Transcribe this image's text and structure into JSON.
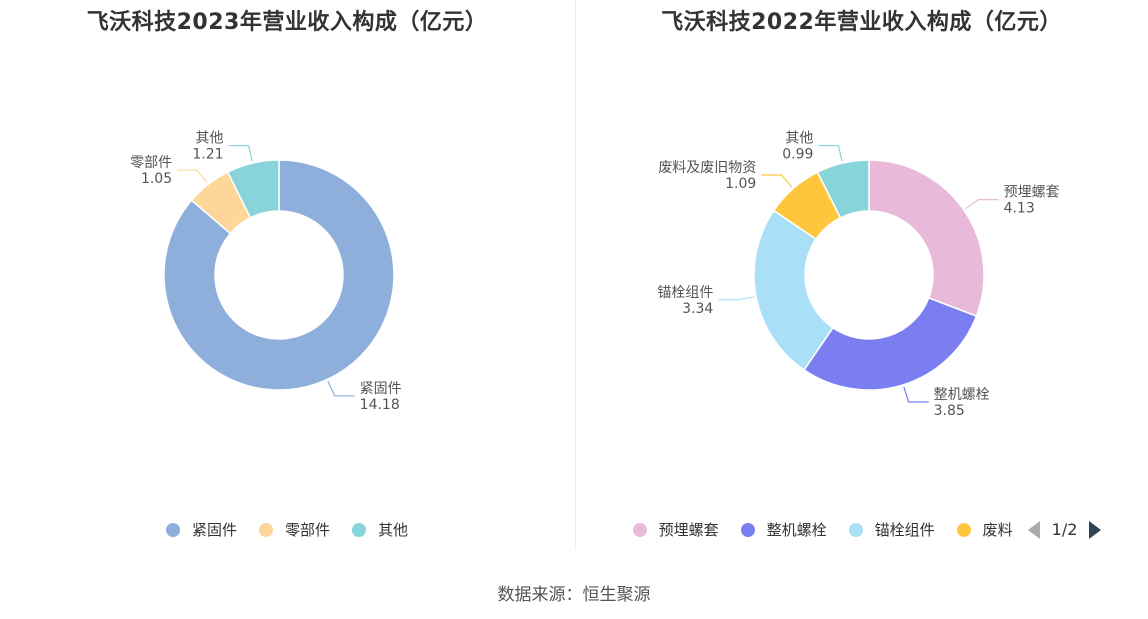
{
  "charts": [
    {
      "title": "飞沃科技2023年营业收入构成（亿元）",
      "legend_items": [
        "紧固件",
        "零部件",
        "其他"
      ]
    },
    {
      "title": "飞沃科技2022年营业收入构成（亿元）",
      "legend_items": [
        "预埋螺套",
        "整机螺栓",
        "锚栓组件",
        "废料"
      ],
      "legend_pager": "1/2"
    }
  ],
  "source": "数据来源：恒生聚源",
  "colors": {
    "紧固件": "#8eaedb",
    "零部件": "#fdd79a",
    "其他": "#87d4da",
    "预埋螺套": "#e8b9d9",
    "整机螺栓": "#7b7ef0",
    "锚栓组件": "#aadff8",
    "废料及废旧物资": "#ffc53d",
    "废料": "#ffc53d"
  },
  "chart_data": [
    {
      "type": "pie",
      "title": "飞沃科技2023年营业收入构成（亿元）",
      "donut": true,
      "slices": [
        {
          "label": "紧固件",
          "value": 14.18
        },
        {
          "label": "零部件",
          "value": 1.05
        },
        {
          "label": "其他",
          "value": 1.21
        }
      ],
      "legend": [
        "紧固件",
        "零部件",
        "其他"
      ],
      "legend_position": "bottom"
    },
    {
      "type": "pie",
      "title": "飞沃科技2022年营业收入构成（亿元）",
      "donut": true,
      "slices": [
        {
          "label": "预埋螺套",
          "value": 4.13
        },
        {
          "label": "整机螺栓",
          "value": 3.85
        },
        {
          "label": "锚栓组件",
          "value": 3.34
        },
        {
          "label": "废料及废旧物资",
          "value": 1.09
        },
        {
          "label": "其他",
          "value": 0.99
        }
      ],
      "legend": [
        "预埋螺套",
        "整机螺栓",
        "锚栓组件",
        "废料"
      ],
      "legend_position": "bottom"
    }
  ]
}
